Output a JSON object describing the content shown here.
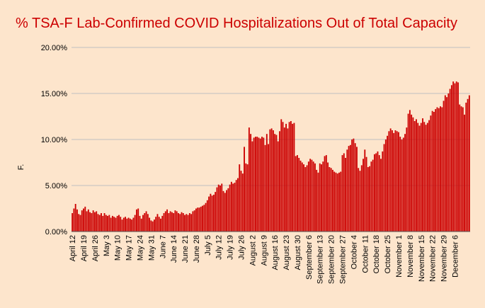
{
  "chart_data": {
    "type": "bar",
    "title": "% TSA-F Lab-Confirmed COVID Hospitalizations Out of Total Capacity",
    "ylabel": "F.",
    "xlabel": "",
    "ylim": [
      0,
      20
    ],
    "yticks": [
      "0.00%",
      "5.00%",
      "10.00%",
      "15.00%",
      "20.00%"
    ],
    "ytick_values": [
      0,
      5,
      10,
      15,
      20
    ],
    "grid": true,
    "legend": "none",
    "start_date": "April 12",
    "xtick_labels": [
      "April 12",
      "April 19",
      "April 26",
      "May 3",
      "May 10",
      "May 17",
      "May 24",
      "May 31",
      "June 7",
      "June 14",
      "June 21",
      "June 28",
      "July 5",
      "July 12",
      "July 19",
      "July 26",
      "August 2",
      "August 9",
      "August 16",
      "August 23",
      "August 30",
      "September 6",
      "September 13",
      "September 20",
      "September 27",
      "October 4",
      "October 11",
      "October 18",
      "October 25",
      "November 1",
      "November 8",
      "November 15",
      "November 22",
      "November 29",
      "December 6"
    ],
    "values": [
      2.0,
      2.5,
      3.0,
      2.4,
      1.9,
      1.8,
      2.3,
      2.5,
      2.7,
      2.2,
      2.4,
      2.1,
      2.0,
      2.3,
      2.1,
      2.2,
      1.9,
      1.8,
      2.0,
      1.7,
      2.0,
      1.8,
      1.7,
      1.8,
      1.5,
      1.7,
      1.6,
      1.5,
      1.7,
      1.8,
      1.6,
      1.3,
      1.5,
      1.6,
      1.4,
      1.5,
      1.4,
      1.3,
      1.5,
      1.8,
      2.4,
      2.5,
      1.7,
      1.4,
      1.8,
      2.0,
      2.2,
      1.9,
      1.5,
      1.2,
      1.1,
      1.3,
      1.6,
      1.9,
      1.6,
      1.4,
      1.7,
      2.0,
      2.2,
      2.4,
      2.0,
      2.2,
      2.1,
      2.0,
      2.3,
      2.2,
      2.0,
      1.9,
      2.1,
      2.0,
      1.8,
      1.9,
      1.8,
      2.0,
      1.9,
      2.2,
      2.3,
      2.5,
      2.6,
      2.6,
      2.7,
      2.8,
      2.9,
      3.1,
      3.4,
      3.8,
      4.1,
      3.9,
      4.0,
      4.3,
      4.8,
      5.1,
      5.0,
      5.2,
      4.4,
      4.2,
      4.5,
      4.7,
      5.1,
      5.4,
      5.2,
      5.3,
      5.6,
      5.8,
      7.3,
      6.6,
      6.3,
      9.2,
      7.4,
      7.3,
      11.3,
      10.6,
      9.8,
      10.2,
      10.3,
      10.3,
      10.2,
      10.1,
      10.3,
      10.2,
      9.4,
      10.6,
      9.5,
      11.1,
      11.2,
      11.0,
      10.6,
      10.5,
      9.8,
      10.9,
      12.2,
      11.9,
      11.3,
      11.7,
      11.2,
      11.9,
      12.0,
      11.7,
      11.8,
      8.2,
      8.3,
      8.0,
      7.7,
      7.5,
      7.3,
      7.0,
      7.2,
      7.6,
      7.9,
      7.8,
      7.6,
      7.4,
      6.7,
      6.4,
      7.4,
      7.3,
      7.6,
      8.2,
      8.3,
      7.5,
      7.0,
      6.9,
      6.7,
      6.5,
      6.4,
      6.3,
      6.4,
      6.5,
      8.3,
      8.5,
      8.0,
      8.9,
      9.3,
      9.4,
      10.0,
      10.1,
      9.6,
      9.2,
      6.9,
      6.6,
      7.2,
      7.9,
      8.9,
      8.1,
      7.0,
      7.1,
      7.6,
      7.8,
      8.4,
      8.5,
      8.7,
      8.3,
      7.9,
      8.7,
      9.5,
      10.0,
      10.4,
      10.9,
      11.2,
      11.0,
      10.7,
      11.0,
      10.9,
      10.8,
      10.3,
      10.0,
      10.2,
      10.6,
      11.3,
      12.8,
      13.2,
      12.7,
      12.4,
      12.0,
      12.2,
      11.8,
      11.5,
      11.8,
      12.3,
      11.9,
      11.6,
      11.8,
      12.1,
      12.6,
      13.1,
      13.0,
      13.3,
      13.5,
      13.4,
      13.6,
      13.5,
      14.2,
      14.8,
      14.6,
      15.0,
      15.5,
      15.9,
      16.3,
      16.1,
      16.3,
      16.2,
      13.8,
      13.6,
      13.5,
      12.7,
      14.0,
      14.4,
      14.8
    ]
  },
  "colors": {
    "background": "#fde5cc",
    "bar": "#cc0000",
    "title": "#cc0000",
    "grid": "#bfbfbf",
    "axis": "#555555"
  }
}
